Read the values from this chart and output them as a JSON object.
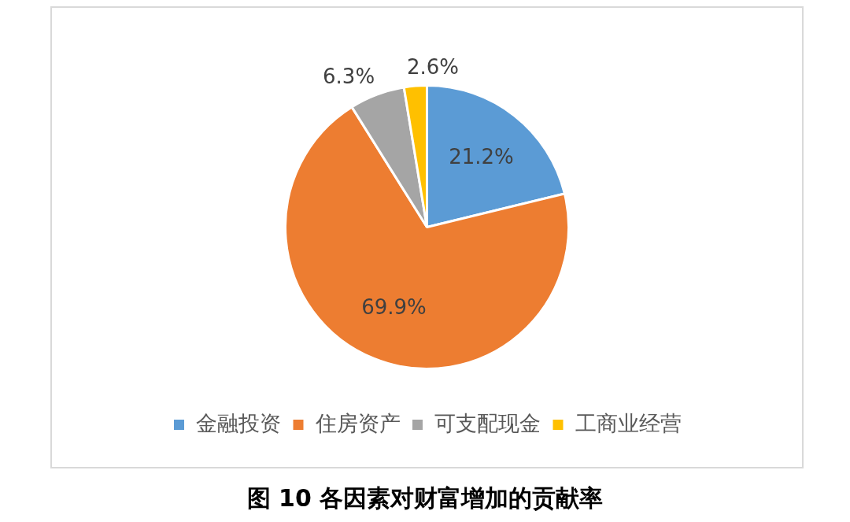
{
  "chart_data": {
    "type": "pie",
    "title": "图 10 各因素对财富增加的贡献率",
    "categories": [
      "金融投资",
      "住房资产",
      "可支配现金",
      "工商业经营"
    ],
    "values": [
      21.2,
      69.9,
      6.3,
      2.6
    ],
    "value_labels": [
      "21.2%",
      "69.9%",
      "6.3%",
      "2.6%"
    ],
    "colors": [
      "#5b9bd5",
      "#ed7d31",
      "#a5a5a5",
      "#ffc000"
    ],
    "legend": "bottom"
  }
}
